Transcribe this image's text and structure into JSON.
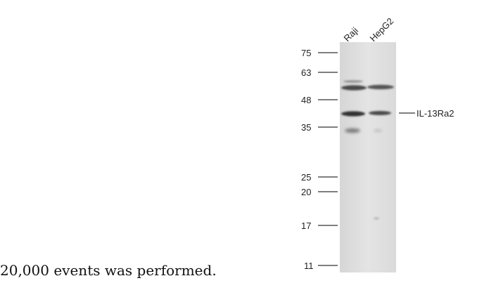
{
  "caption": "20,000 events was performed.",
  "lanes": [
    "Raji",
    "HepG2"
  ],
  "markers": [
    "75",
    "63",
    "48",
    "35",
    "25",
    "20",
    "17",
    "11"
  ],
  "target_label": "IL-13Ra2",
  "colors": {
    "membrane": "#e2e2e2",
    "band_dark": "#3a3a3a",
    "band_mid": "#5e5e5e",
    "text": "#222222"
  }
}
